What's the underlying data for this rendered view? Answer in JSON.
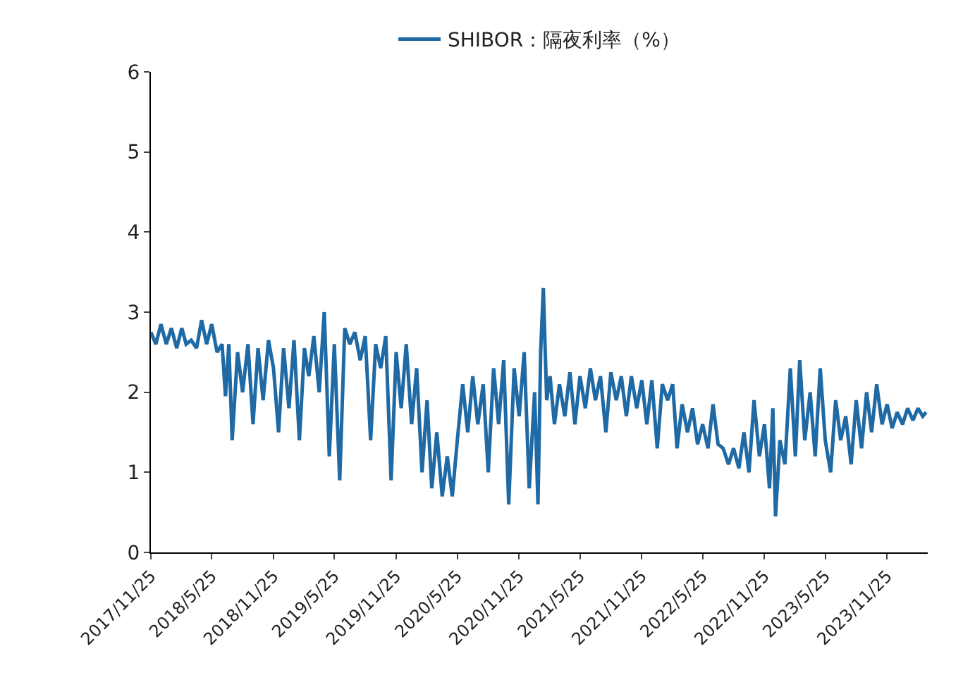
{
  "chart_data": {
    "type": "line",
    "legend": "top",
    "grid": false,
    "marker": "none",
    "line_style": "solid",
    "x": [
      "2017-11-25",
      "2017-12-10",
      "2017-12-25",
      "2018-01-10",
      "2018-01-25",
      "2018-02-10",
      "2018-02-25",
      "2018-03-10",
      "2018-03-25",
      "2018-04-10",
      "2018-04-25",
      "2018-05-10",
      "2018-05-25",
      "2018-06-10",
      "2018-06-25",
      "2018-07-05",
      "2018-07-15",
      "2018-07-25",
      "2018-08-10",
      "2018-08-25",
      "2018-09-10",
      "2018-09-25",
      "2018-10-10",
      "2018-10-25",
      "2018-11-10",
      "2018-11-25",
      "2018-12-10",
      "2018-12-25",
      "2019-01-10",
      "2019-01-25",
      "2019-02-10",
      "2019-02-25",
      "2019-03-10",
      "2019-03-25",
      "2019-04-10",
      "2019-04-25",
      "2019-05-10",
      "2019-05-25",
      "2019-06-10",
      "2019-06-25",
      "2019-07-10",
      "2019-07-25",
      "2019-08-10",
      "2019-08-25",
      "2019-09-10",
      "2019-09-25",
      "2019-10-10",
      "2019-10-25",
      "2019-11-10",
      "2019-11-25",
      "2019-12-10",
      "2019-12-25",
      "2020-01-10",
      "2020-01-25",
      "2020-02-10",
      "2020-02-25",
      "2020-03-10",
      "2020-03-25",
      "2020-04-10",
      "2020-04-25",
      "2020-05-10",
      "2020-05-25",
      "2020-06-10",
      "2020-06-25",
      "2020-07-10",
      "2020-07-25",
      "2020-08-10",
      "2020-08-25",
      "2020-09-10",
      "2020-09-25",
      "2020-10-10",
      "2020-10-25",
      "2020-11-10",
      "2020-11-25",
      "2020-12-10",
      "2020-12-25",
      "2021-01-10",
      "2021-01-20",
      "2021-01-28",
      "2021-02-05",
      "2021-02-15",
      "2021-02-25",
      "2021-03-10",
      "2021-03-25",
      "2021-04-10",
      "2021-04-25",
      "2021-05-10",
      "2021-05-25",
      "2021-06-10",
      "2021-06-25",
      "2021-07-10",
      "2021-07-25",
      "2021-08-10",
      "2021-08-25",
      "2021-09-10",
      "2021-09-25",
      "2021-10-10",
      "2021-10-25",
      "2021-11-10",
      "2021-11-25",
      "2021-12-10",
      "2021-12-25",
      "2022-01-10",
      "2022-01-25",
      "2022-02-10",
      "2022-02-25",
      "2022-03-10",
      "2022-03-25",
      "2022-04-10",
      "2022-04-25",
      "2022-05-10",
      "2022-05-25",
      "2022-06-10",
      "2022-06-25",
      "2022-07-10",
      "2022-07-25",
      "2022-08-10",
      "2022-08-25",
      "2022-09-10",
      "2022-09-25",
      "2022-10-10",
      "2022-10-25",
      "2022-11-10",
      "2022-11-25",
      "2022-12-10",
      "2022-12-20",
      "2022-12-28",
      "2023-01-10",
      "2023-01-25",
      "2023-02-10",
      "2023-02-25",
      "2023-03-10",
      "2023-03-25",
      "2023-04-10",
      "2023-04-25",
      "2023-05-10",
      "2023-05-25",
      "2023-06-10",
      "2023-06-25",
      "2023-07-10",
      "2023-07-25",
      "2023-08-10",
      "2023-08-25",
      "2023-09-10",
      "2023-09-25",
      "2023-10-10",
      "2023-10-25",
      "2023-11-10",
      "2023-11-25",
      "2023-12-10",
      "2023-12-25",
      "2024-01-10",
      "2024-01-25",
      "2024-02-10",
      "2024-02-25",
      "2024-03-10",
      "2024-03-20"
    ],
    "series": [
      {
        "name": "SHIBOR：隔夜利率（%）",
        "color": "#1f6aa5",
        "values": [
          2.75,
          2.6,
          2.85,
          2.6,
          2.8,
          2.55,
          2.8,
          2.6,
          2.65,
          2.55,
          2.9,
          2.6,
          2.85,
          2.5,
          2.6,
          1.95,
          2.6,
          1.4,
          2.5,
          2.0,
          2.6,
          1.6,
          2.55,
          1.9,
          2.65,
          2.3,
          1.5,
          2.55,
          1.8,
          2.65,
          1.4,
          2.55,
          2.2,
          2.7,
          2.0,
          3.0,
          1.2,
          2.6,
          0.9,
          2.8,
          2.6,
          2.75,
          2.4,
          2.7,
          1.4,
          2.6,
          2.3,
          2.7,
          0.9,
          2.5,
          1.8,
          2.6,
          1.6,
          2.3,
          1.0,
          1.9,
          0.8,
          1.5,
          0.7,
          1.2,
          0.7,
          1.4,
          2.1,
          1.5,
          2.2,
          1.6,
          2.1,
          1.0,
          2.3,
          1.6,
          2.4,
          0.6,
          2.3,
          1.7,
          2.5,
          0.8,
          2.0,
          0.6,
          2.5,
          3.3,
          1.9,
          2.2,
          1.6,
          2.1,
          1.7,
          2.25,
          1.6,
          2.2,
          1.8,
          2.3,
          1.9,
          2.2,
          1.5,
          2.25,
          1.9,
          2.2,
          1.7,
          2.2,
          1.8,
          2.15,
          1.6,
          2.15,
          1.3,
          2.1,
          1.9,
          2.1,
          1.3,
          1.85,
          1.5,
          1.8,
          1.35,
          1.6,
          1.3,
          1.85,
          1.35,
          1.3,
          1.1,
          1.3,
          1.05,
          1.5,
          1.0,
          1.9,
          1.2,
          1.6,
          0.8,
          1.8,
          0.45,
          1.4,
          1.1,
          2.3,
          1.2,
          2.4,
          1.4,
          2.0,
          1.2,
          2.3,
          1.4,
          1.0,
          1.9,
          1.4,
          1.7,
          1.1,
          1.9,
          1.3,
          2.0,
          1.5,
          2.1,
          1.6,
          1.85,
          1.55,
          1.75,
          1.6,
          1.8,
          1.65,
          1.8,
          1.7,
          1.75
        ]
      }
    ],
    "xlim": [
      "2017-11-25",
      "2024-03-25"
    ],
    "xticks": [
      {
        "value": "2017-11-25",
        "label": "2017/11/25"
      },
      {
        "value": "2018-05-25",
        "label": "2018/5/25"
      },
      {
        "value": "2018-11-25",
        "label": "2018/11/25"
      },
      {
        "value": "2019-05-25",
        "label": "2019/5/25"
      },
      {
        "value": "2019-11-25",
        "label": "2019/11/25"
      },
      {
        "value": "2020-05-25",
        "label": "2020/5/25"
      },
      {
        "value": "2020-11-25",
        "label": "2020/11/25"
      },
      {
        "value": "2021-05-25",
        "label": "2021/5/25"
      },
      {
        "value": "2021-11-25",
        "label": "2021/11/25"
      },
      {
        "value": "2022-05-25",
        "label": "2022/5/25"
      },
      {
        "value": "2022-11-25",
        "label": "2022/11/25"
      },
      {
        "value": "2023-05-25",
        "label": "2023/5/25"
      },
      {
        "value": "2023-11-25",
        "label": "2023/11/25"
      }
    ],
    "ylim": [
      0,
      6
    ],
    "yticks": [
      0,
      1,
      2,
      3,
      4,
      5,
      6
    ]
  }
}
